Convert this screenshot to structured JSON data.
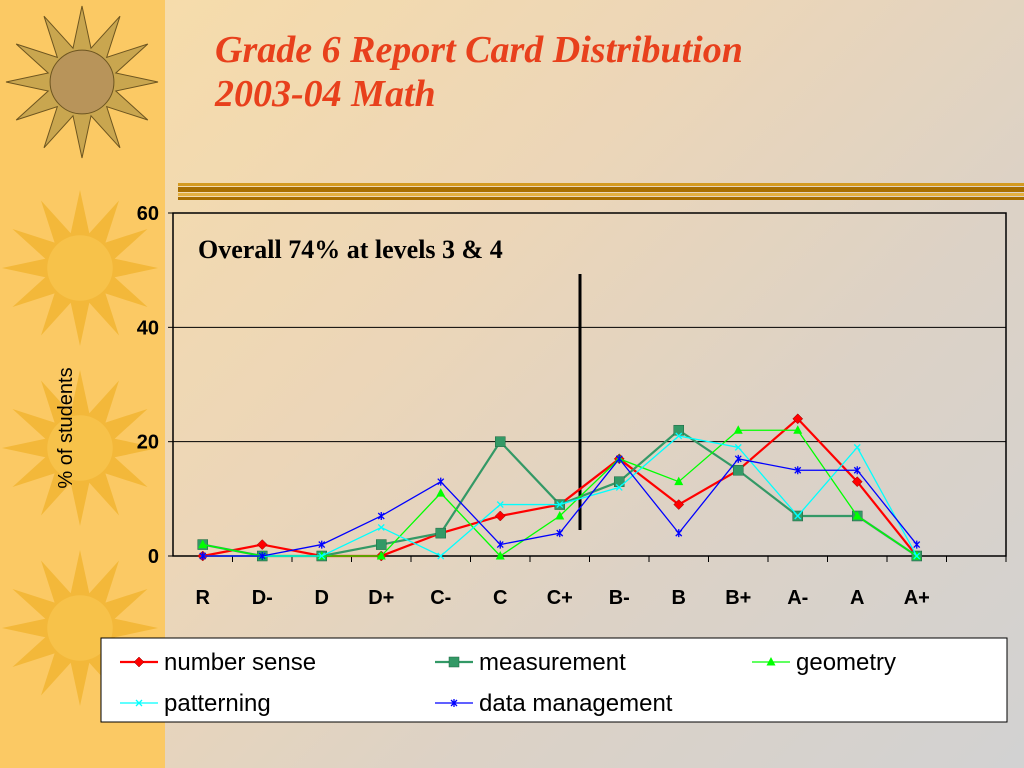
{
  "title": {
    "line1": "Grade 6 Report Card Distribution",
    "line2": "2003-04 Math"
  },
  "colors": {
    "title": "#e8401c",
    "left_band": "#fbc964",
    "divider": "#b07800"
  },
  "chart_data": {
    "type": "line",
    "categories": [
      "R",
      "D-",
      "D",
      "D+",
      "C-",
      "C",
      "C+",
      "B-",
      "B",
      "B+",
      "A-",
      "A",
      "A+"
    ],
    "ylabel": "% of students",
    "ylim": [
      0,
      60
    ],
    "yticks": [
      0,
      20,
      40,
      60
    ],
    "grid": true,
    "annotation": "Overall 74% at levels 3 & 4",
    "legend_position": "bottom",
    "series": [
      {
        "name": "number sense",
        "color": "#ff0000",
        "marker": "diamond",
        "values": [
          0,
          2,
          0,
          0,
          4,
          7,
          9,
          17,
          9,
          15,
          24,
          13,
          0
        ]
      },
      {
        "name": "measurement",
        "color": "#339966",
        "marker": "square",
        "values": [
          2,
          0,
          0,
          2,
          4,
          20,
          9,
          13,
          22,
          15,
          7,
          7,
          0
        ]
      },
      {
        "name": "geometry",
        "color": "#00ff00",
        "marker": "triangle",
        "values": [
          2,
          0,
          0,
          0,
          11,
          0,
          7,
          17,
          13,
          22,
          22,
          7,
          0
        ]
      },
      {
        "name": "patterning",
        "color": "#00ffff",
        "marker": "x",
        "values": [
          0,
          0,
          0,
          5,
          0,
          9,
          9,
          12,
          21,
          19,
          7,
          19,
          0
        ]
      },
      {
        "name": "data management",
        "color": "#0000ff",
        "marker": "star",
        "values": [
          0,
          0,
          2,
          7,
          13,
          2,
          4,
          17,
          4,
          17,
          15,
          15,
          2
        ]
      }
    ]
  }
}
